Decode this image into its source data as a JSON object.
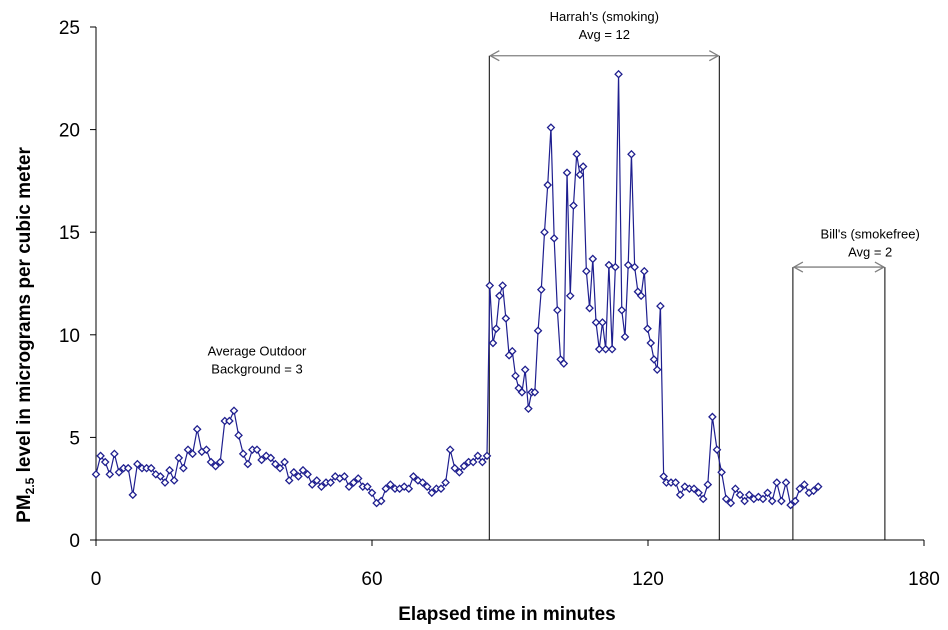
{
  "chart_data": {
    "type": "line",
    "title": "",
    "xlabel": "Elapsed time in minutes",
    "ylabel_parts": [
      "PM",
      "2.5",
      " level in micrograms per cubic meter"
    ],
    "xlim": [
      0,
      180
    ],
    "ylim": [
      0,
      25
    ],
    "xticks": [
      0,
      60,
      120,
      180
    ],
    "yticks": [
      0,
      5,
      10,
      15,
      20,
      25
    ],
    "grid": false,
    "legend": "none",
    "colors": {
      "line": "#1f1f8f",
      "marker_edge": "#1f1f8f",
      "marker_fill": "#ffffff",
      "annotation": "#808080"
    },
    "series": [
      {
        "marker": "diamond",
        "points": [
          [
            0,
            3.2
          ],
          [
            1,
            4.1
          ],
          [
            2,
            3.8
          ],
          [
            3,
            3.2
          ],
          [
            4,
            4.2
          ],
          [
            5,
            3.3
          ],
          [
            6,
            3.5
          ],
          [
            7,
            3.5
          ],
          [
            8,
            2.2
          ],
          [
            9,
            3.7
          ],
          [
            10,
            3.5
          ],
          [
            11,
            3.5
          ],
          [
            12,
            3.5
          ],
          [
            13,
            3.2
          ],
          [
            14,
            3.1
          ],
          [
            15,
            2.8
          ],
          [
            16,
            3.4
          ],
          [
            17,
            2.9
          ],
          [
            18,
            4.0
          ],
          [
            19,
            3.5
          ],
          [
            20,
            4.4
          ],
          [
            21,
            4.2
          ],
          [
            22,
            5.4
          ],
          [
            23,
            4.3
          ],
          [
            24,
            4.4
          ],
          [
            25,
            3.8
          ],
          [
            26,
            3.6
          ],
          [
            27,
            3.8
          ],
          [
            28,
            5.8
          ],
          [
            29,
            5.8
          ],
          [
            30,
            6.3
          ],
          [
            31,
            5.1
          ],
          [
            32,
            4.2
          ],
          [
            33,
            3.7
          ],
          [
            34,
            4.4
          ],
          [
            35,
            4.4
          ],
          [
            36,
            3.9
          ],
          [
            37,
            4.1
          ],
          [
            38,
            4.0
          ],
          [
            39,
            3.7
          ],
          [
            40,
            3.5
          ],
          [
            41,
            3.8
          ],
          [
            42,
            2.9
          ],
          [
            43,
            3.3
          ],
          [
            44,
            3.1
          ],
          [
            45,
            3.4
          ],
          [
            46,
            3.2
          ],
          [
            47,
            2.7
          ],
          [
            48,
            2.9
          ],
          [
            49,
            2.6
          ],
          [
            50,
            2.8
          ],
          [
            51,
            2.8
          ],
          [
            52,
            3.1
          ],
          [
            53,
            3.0
          ],
          [
            54,
            3.1
          ],
          [
            55,
            2.6
          ],
          [
            56,
            2.8
          ],
          [
            57,
            3.0
          ],
          [
            58,
            2.6
          ],
          [
            59,
            2.6
          ],
          [
            60,
            2.3
          ],
          [
            61,
            1.8
          ],
          [
            62,
            1.9
          ],
          [
            63,
            2.5
          ],
          [
            64,
            2.7
          ],
          [
            65,
            2.5
          ],
          [
            66,
            2.5
          ],
          [
            67,
            2.6
          ],
          [
            68,
            2.5
          ],
          [
            69,
            3.1
          ],
          [
            70,
            2.9
          ],
          [
            71,
            2.8
          ],
          [
            72,
            2.6
          ],
          [
            73,
            2.3
          ],
          [
            74,
            2.5
          ],
          [
            75,
            2.5
          ],
          [
            76,
            2.8
          ],
          [
            77,
            4.4
          ],
          [
            78,
            3.5
          ],
          [
            79,
            3.3
          ],
          [
            80,
            3.6
          ],
          [
            81,
            3.8
          ],
          [
            82,
            3.8
          ],
          [
            83,
            4.1
          ],
          [
            84,
            3.8
          ],
          [
            85,
            4.1
          ],
          [
            85.6,
            12.4
          ],
          [
            86.3,
            9.6
          ],
          [
            87,
            10.3
          ],
          [
            87.7,
            11.9
          ],
          [
            88.4,
            12.4
          ],
          [
            89.1,
            10.8
          ],
          [
            89.8,
            9.0
          ],
          [
            90.5,
            9.2
          ],
          [
            91.2,
            8.0
          ],
          [
            91.9,
            7.4
          ],
          [
            92.6,
            7.2
          ],
          [
            93.3,
            8.3
          ],
          [
            94,
            6.4
          ],
          [
            94.7,
            7.2
          ],
          [
            95.4,
            7.2
          ],
          [
            96.1,
            10.2
          ],
          [
            96.8,
            12.2
          ],
          [
            97.5,
            15.0
          ],
          [
            98.2,
            17.3
          ],
          [
            98.9,
            20.1
          ],
          [
            99.6,
            14.7
          ],
          [
            100.3,
            11.2
          ],
          [
            101,
            8.8
          ],
          [
            101.7,
            8.6
          ],
          [
            102.4,
            17.9
          ],
          [
            103.1,
            11.9
          ],
          [
            103.8,
            16.3
          ],
          [
            104.5,
            18.8
          ],
          [
            105.2,
            17.8
          ],
          [
            105.9,
            18.2
          ],
          [
            106.6,
            13.1
          ],
          [
            107.3,
            11.3
          ],
          [
            108,
            13.7
          ],
          [
            108.7,
            10.6
          ],
          [
            109.4,
            9.3
          ],
          [
            110.1,
            10.6
          ],
          [
            110.8,
            9.3
          ],
          [
            111.5,
            13.4
          ],
          [
            112.2,
            9.3
          ],
          [
            112.9,
            13.3
          ],
          [
            113.6,
            22.7
          ],
          [
            114.3,
            11.2
          ],
          [
            115,
            9.9
          ],
          [
            115.7,
            13.4
          ],
          [
            116.4,
            18.8
          ],
          [
            117.1,
            13.3
          ],
          [
            117.8,
            12.1
          ],
          [
            118.5,
            11.9
          ],
          [
            119.2,
            13.1
          ],
          [
            119.9,
            10.3
          ],
          [
            120.6,
            9.6
          ],
          [
            121.3,
            8.8
          ],
          [
            122,
            8.3
          ],
          [
            122.7,
            11.4
          ],
          [
            123.4,
            3.1
          ],
          [
            124,
            2.8
          ],
          [
            125,
            2.8
          ],
          [
            126,
            2.8
          ],
          [
            127,
            2.2
          ],
          [
            128,
            2.6
          ],
          [
            129,
            2.5
          ],
          [
            130,
            2.5
          ],
          [
            131,
            2.3
          ],
          [
            132,
            2.0
          ],
          [
            133,
            2.7
          ],
          [
            134,
            6.0
          ],
          [
            135,
            4.4
          ],
          [
            136,
            3.3
          ],
          [
            137,
            2.0
          ],
          [
            138,
            1.8
          ],
          [
            139,
            2.5
          ],
          [
            140,
            2.2
          ],
          [
            141,
            1.9
          ],
          [
            142,
            2.2
          ],
          [
            143,
            2.0
          ],
          [
            144,
            2.1
          ],
          [
            145,
            2.0
          ],
          [
            146,
            2.3
          ],
          [
            147,
            1.9
          ],
          [
            148,
            2.8
          ],
          [
            149,
            1.9
          ],
          [
            150,
            2.8
          ],
          [
            151,
            1.7
          ],
          [
            152,
            1.9
          ],
          [
            153,
            2.5
          ],
          [
            154,
            2.7
          ],
          [
            155,
            2.3
          ],
          [
            156,
            2.4
          ],
          [
            157,
            2.6
          ]
        ]
      }
    ],
    "annotations": [
      {
        "lines": [
          "Average Outdoor",
          "Background = 3"
        ],
        "x": 35,
        "y": 9.0
      },
      {
        "lines": [
          "Harrah's (smoking)",
          "Avg = 12"
        ],
        "x": 110.5,
        "y": 25.3
      },
      {
        "lines": [
          "Bill's (smokefree)",
          "Avg = 2"
        ],
        "x": 168.3,
        "y": 14.7
      }
    ],
    "vertical_lines": [
      {
        "x": 85.5,
        "y_top": 23.6
      },
      {
        "x": 135.5,
        "y_top": 23.6
      },
      {
        "x": 151.5,
        "y_top": 13.3
      },
      {
        "x": 171.5,
        "y_top": 13.3
      }
    ],
    "arrows": [
      {
        "x1": 85.5,
        "x2": 135.5,
        "y": 23.6
      },
      {
        "x1": 151.5,
        "x2": 171.5,
        "y": 13.3
      }
    ]
  }
}
